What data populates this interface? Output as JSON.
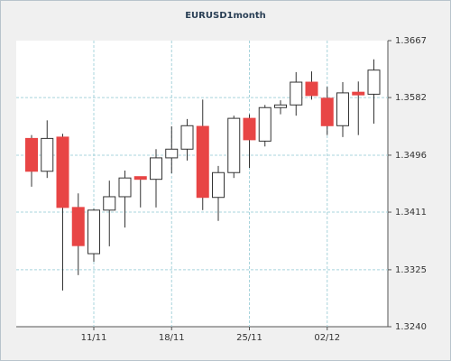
{
  "chart_data": {
    "type": "candlestick",
    "title": "EURUSD1month",
    "categories": [
      null,
      null,
      null,
      null,
      "11/11",
      null,
      null,
      null,
      null,
      "18/11",
      null,
      null,
      null,
      null,
      "25/11",
      null,
      null,
      null,
      null,
      "02/12",
      null,
      null,
      null
    ],
    "open": [
      1.3521,
      1.3472,
      1.3523,
      1.3418,
      1.3349,
      1.3414,
      1.3434,
      1.3464,
      1.346,
      1.3492,
      1.3505,
      1.3539,
      1.3433,
      1.347,
      1.3551,
      1.3517,
      1.3567,
      1.3571,
      1.3605,
      1.3581,
      1.354,
      1.359,
      1.3587
    ],
    "high": [
      1.3526,
      1.3548,
      1.3528,
      1.3439,
      1.3416,
      1.3458,
      1.3473,
      1.3464,
      1.3505,
      1.3539,
      1.355,
      1.3579,
      1.348,
      1.3555,
      1.3557,
      1.3571,
      1.3578,
      1.362,
      1.3621,
      1.3598,
      1.3605,
      1.3606,
      1.3639
    ],
    "low": [
      1.3449,
      1.3462,
      1.3294,
      1.3317,
      1.3337,
      1.336,
      1.3388,
      1.3418,
      1.3418,
      1.3469,
      1.3488,
      1.3414,
      1.3398,
      1.3462,
      1.3477,
      1.3509,
      1.3557,
      1.3555,
      1.3579,
      1.3526,
      1.3523,
      1.3526,
      1.3543
    ],
    "close": [
      1.3472,
      1.3521,
      1.3418,
      1.3361,
      1.3414,
      1.3434,
      1.3462,
      1.346,
      1.3492,
      1.3505,
      1.354,
      1.3433,
      1.347,
      1.3551,
      1.3519,
      1.3567,
      1.3571,
      1.3605,
      1.3585,
      1.354,
      1.3589,
      1.3586,
      1.3623
    ],
    "up_color": "#ffffff",
    "down_color": "#e84545",
    "ylim": [
      1.324,
      1.3667
    ],
    "yticks": [
      {
        "value": 1.324,
        "label": "1.3240"
      },
      1.3325,
      1.3411,
      1.3496,
      1.3582,
      1.3667
    ],
    "grid": true
  }
}
